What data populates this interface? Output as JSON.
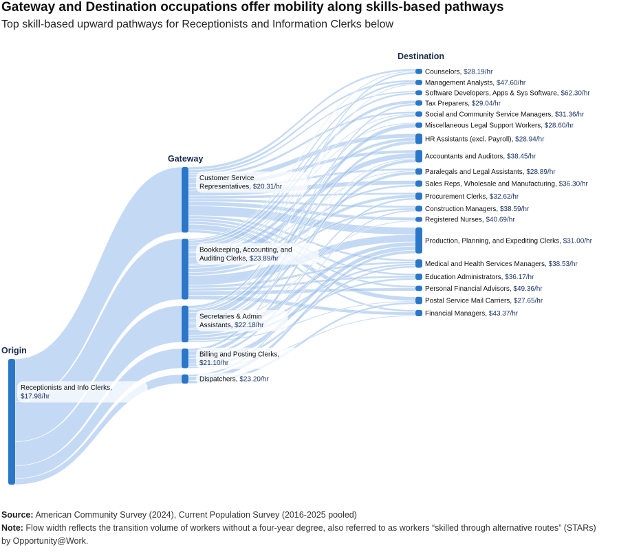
{
  "title": "Gateway and Destination occupations offer mobility along skills-based pathways",
  "subtitle": "Top skill-based upward pathways for Receptionists and Information Clerks below",
  "footer": {
    "source_label": "Source:",
    "source_text": " American Community Survey (2024), Current Population Survey (2016-2025 pooled)",
    "note_label": "Note:",
    "note_text": " Flow width reflects the transition volume of workers without a four-year degree, also referred to as workers “skilled through alternative routes” (STARs) by Opportunity@Work."
  },
  "colors": {
    "node": "#2a77c9",
    "link": "#9fc2ec",
    "label_text": "#111111",
    "wage_text": "#1d3566"
  },
  "chart_data": {
    "type": "sankey",
    "columns": [
      "Origin",
      "Gateway",
      "Destination"
    ],
    "nodes": [
      {
        "id": "o1",
        "column": 0,
        "name": "Receptionists and Info Clerks,",
        "wage": "$17.98/hr"
      },
      {
        "id": "g1",
        "column": 1,
        "name": "Customer Service Representatives,",
        "wage": "$20.31/hr"
      },
      {
        "id": "g2",
        "column": 1,
        "name": "Bookkeeping, Accounting, and Auditing Clerks,",
        "wage": "$23.89/hr"
      },
      {
        "id": "g3",
        "column": 1,
        "name": "Secretaries & Admin Assistants,",
        "wage": "$22.18/hr"
      },
      {
        "id": "g4",
        "column": 1,
        "name": "Billing and Posting Clerks,",
        "wage": "$21.10/hr"
      },
      {
        "id": "g5",
        "column": 1,
        "name": "Dispatchers,",
        "wage": "$23.20/hr"
      },
      {
        "id": "d1",
        "column": 2,
        "name": "Counselors,",
        "wage": "$28.19/hr"
      },
      {
        "id": "d2",
        "column": 2,
        "name": "Management Analysts,",
        "wage": "$47.60/hr"
      },
      {
        "id": "d3",
        "column": 2,
        "name": "Software Developers, Apps & Sys Software,",
        "wage": "$62.30/hr"
      },
      {
        "id": "d4",
        "column": 2,
        "name": "Tax Preparers,",
        "wage": "$29.04/hr"
      },
      {
        "id": "d5",
        "column": 2,
        "name": "Social and Community Service Managers,",
        "wage": "$31.36/hr"
      },
      {
        "id": "d6",
        "column": 2,
        "name": "Miscellaneous Legal Support Workers,",
        "wage": "$28.60/hr"
      },
      {
        "id": "d7",
        "column": 2,
        "name": "HR Assistants (excl. Payroll),",
        "wage": "$28.94/hr"
      },
      {
        "id": "d8",
        "column": 2,
        "name": "Accountants and Auditors,",
        "wage": "$38.45/hr"
      },
      {
        "id": "d9",
        "column": 2,
        "name": "Paralegals and Legal Assistants,",
        "wage": "$28.89/hr"
      },
      {
        "id": "d10",
        "column": 2,
        "name": "Sales Reps, Wholesale and Manufacturing,",
        "wage": "$36.30/hr"
      },
      {
        "id": "d11",
        "column": 2,
        "name": "Procurement Clerks,",
        "wage": "$32.62/hr"
      },
      {
        "id": "d12",
        "column": 2,
        "name": "Construction Managers,",
        "wage": "$38.59/hr"
      },
      {
        "id": "d13",
        "column": 2,
        "name": "Registered Nurses,",
        "wage": "$40.69/hr"
      },
      {
        "id": "d14",
        "column": 2,
        "name": "Production, Planning, and Expediting Clerks,",
        "wage": "$31.00/hr"
      },
      {
        "id": "d15",
        "column": 2,
        "name": "Medical and Health Services Managers,",
        "wage": "$38.53/hr"
      },
      {
        "id": "d16",
        "column": 2,
        "name": "Education Administrators,",
        "wage": "$36.17/hr"
      },
      {
        "id": "d17",
        "column": 2,
        "name": "Personal Financial Advisors,",
        "wage": "$49.36/hr"
      },
      {
        "id": "d18",
        "column": 2,
        "name": "Postal Service Mail Carriers,",
        "wage": "$27.65/hr"
      },
      {
        "id": "d19",
        "column": 2,
        "name": "Financial Managers,",
        "wage": "$43.37/hr"
      }
    ],
    "links": [
      [
        "o1",
        "g1",
        93
      ],
      [
        "o1",
        "g2",
        86
      ],
      [
        "o1",
        "g3",
        52
      ],
      [
        "o1",
        "g4",
        28
      ],
      [
        "o1",
        "g5",
        13
      ],
      [
        "g1",
        "d1",
        4
      ],
      [
        "g1",
        "d2",
        4
      ],
      [
        "g1",
        "d3",
        3
      ],
      [
        "g1",
        "d5",
        4
      ],
      [
        "g1",
        "d7",
        8
      ],
      [
        "g1",
        "d8",
        6
      ],
      [
        "g1",
        "d9",
        4
      ],
      [
        "g1",
        "d10",
        8
      ],
      [
        "g1",
        "d11",
        4
      ],
      [
        "g1",
        "d12",
        4
      ],
      [
        "g1",
        "d13",
        6
      ],
      [
        "g1",
        "d14",
        14
      ],
      [
        "g1",
        "d15",
        4
      ],
      [
        "g1",
        "d16",
        4
      ],
      [
        "g1",
        "d17",
        4
      ],
      [
        "g1",
        "d18",
        8
      ],
      [
        "g1",
        "d19",
        4
      ],
      [
        "g2",
        "d1",
        2
      ],
      [
        "g2",
        "d2",
        4
      ],
      [
        "g2",
        "d3",
        4
      ],
      [
        "g2",
        "d4",
        6
      ],
      [
        "g2",
        "d5",
        2
      ],
      [
        "g2",
        "d6",
        2
      ],
      [
        "g2",
        "d7",
        6
      ],
      [
        "g2",
        "d8",
        10
      ],
      [
        "g2",
        "d9",
        2
      ],
      [
        "g2",
        "d10",
        4
      ],
      [
        "g2",
        "d11",
        6
      ],
      [
        "g2",
        "d12",
        4
      ],
      [
        "g2",
        "d14",
        14
      ],
      [
        "g2",
        "d15",
        4
      ],
      [
        "g2",
        "d16",
        4
      ],
      [
        "g2",
        "d17",
        6
      ],
      [
        "g2",
        "d19",
        6
      ],
      [
        "g3",
        "d1",
        4
      ],
      [
        "g3",
        "d2",
        2
      ],
      [
        "g3",
        "d5",
        4
      ],
      [
        "g3",
        "d6",
        8
      ],
      [
        "g3",
        "d7",
        6
      ],
      [
        "g3",
        "d8",
        2
      ],
      [
        "g3",
        "d9",
        6
      ],
      [
        "g3",
        "d13",
        2
      ],
      [
        "g3",
        "d14",
        8
      ],
      [
        "g3",
        "d15",
        4
      ],
      [
        "g3",
        "d16",
        4
      ],
      [
        "g3",
        "d18",
        2
      ],
      [
        "g4",
        "d4",
        4
      ],
      [
        "g4",
        "d8",
        6
      ],
      [
        "g4",
        "d11",
        4
      ],
      [
        "g4",
        "d14",
        8
      ],
      [
        "g4",
        "d15",
        4
      ],
      [
        "g4",
        "d19",
        2
      ],
      [
        "g5",
        "d12",
        3
      ],
      [
        "g5",
        "d14",
        6
      ],
      [
        "g5",
        "d18",
        4
      ]
    ]
  }
}
